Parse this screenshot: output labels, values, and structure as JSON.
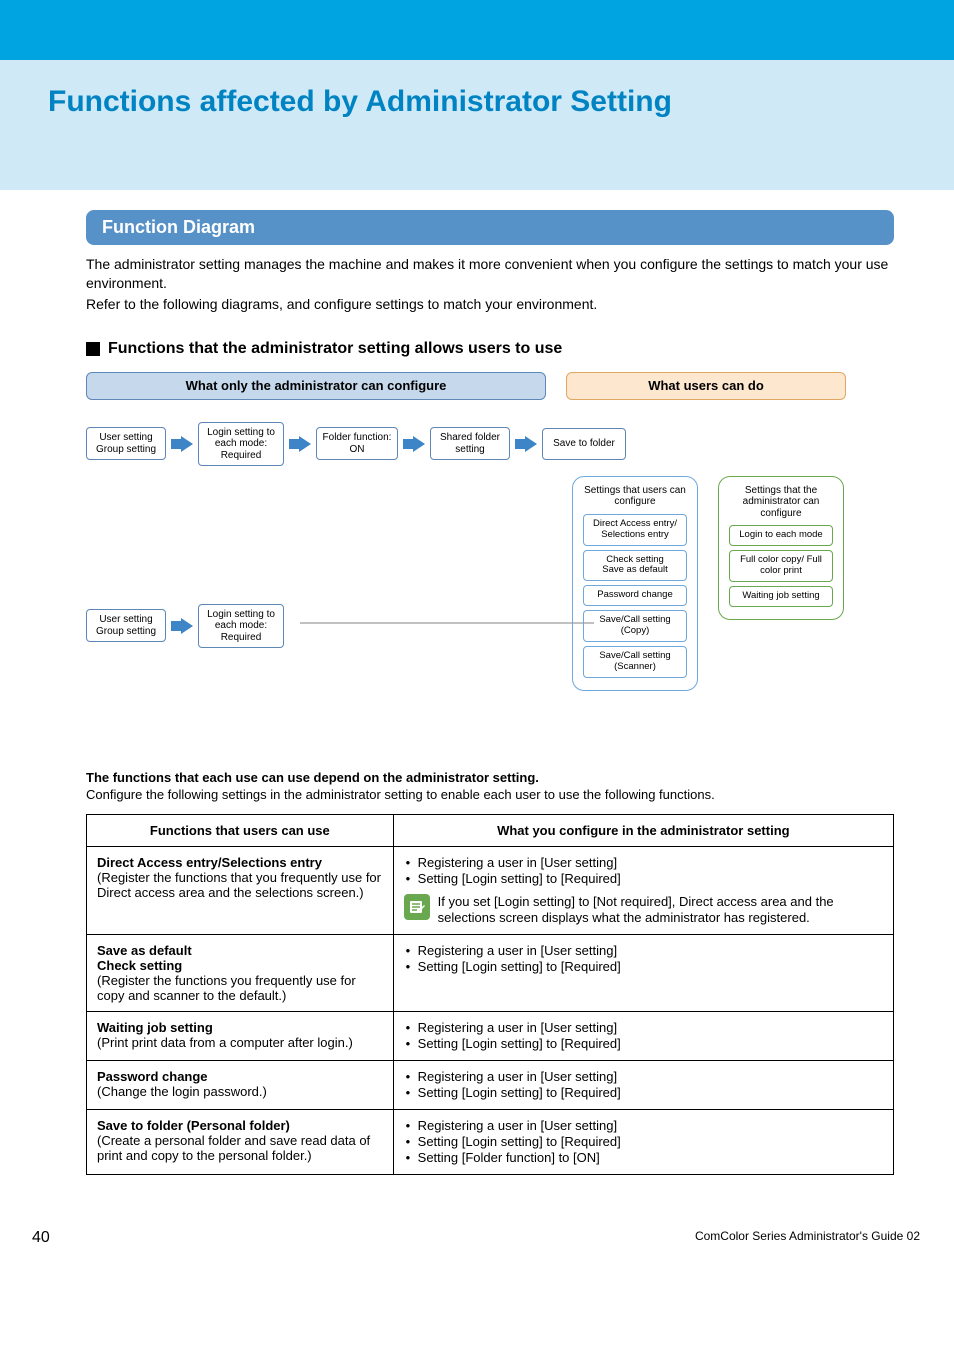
{
  "colors": {
    "top_bar": "#00a4e0",
    "title_band_bg": "#cfe9f7",
    "title_text": "#0083c2",
    "section_header_bg": "#5691c8",
    "admin_panel_fill": "#c6d9ec",
    "admin_panel_border": "#5d87b7",
    "users_panel_fill": "#fde7cf",
    "users_panel_border": "#e0a763",
    "box_border_blue": "#5d87b7",
    "blue_group_border": "#6fa8dc",
    "green_group_border": "#6aa84f",
    "mini_blue_border": "#6fa8dc",
    "mini_green_border": "#6aa84f",
    "arrow_fill": "#3d85c6",
    "note_icon_bg": "#6aa84f",
    "connector": "#808080"
  },
  "title": "Functions affected by Administrator Setting",
  "section_header": "Function Diagram",
  "intro": {
    "p1": "The administrator setting manages the machine and makes it more convenient when you configure the settings to match your use environment.",
    "p2": "Refer to the following diagrams, and configure settings to match your environment."
  },
  "subheading": "Functions that the administrator setting allows users to use",
  "diagram": {
    "admin_panel": "What only the administrator can configure",
    "users_panel": "What users can do",
    "row1": {
      "b1": "User setting\nGroup setting",
      "b2": "Login setting to each mode: Required",
      "b3": "Folder function: ON",
      "b4": "Shared folder setting",
      "b5": "Save to folder"
    },
    "row2": {
      "b1": "User setting\nGroup setting",
      "b2": "Login setting to each mode: Required"
    },
    "users_group": {
      "title": "Settings that users can configure",
      "items": [
        "Direct Access entry/ Selections entry",
        "Check setting\nSave as default",
        "Password change",
        "Save/Call setting (Copy)",
        "Save/Call setting (Scanner)"
      ]
    },
    "admins_group": {
      "title": "Settings that the administrator can configure",
      "items": [
        "Login to each mode",
        "Full color copy/ Full color print",
        "Waiting job setting"
      ]
    }
  },
  "explain": {
    "bold": "The functions that each use can use depend on the administrator setting.",
    "p": "Configure the following settings in the administrator setting to enable each user to use the following functions."
  },
  "table": {
    "headers": [
      "Functions that users can use",
      "What you configure in the administrator setting"
    ],
    "rows": [
      {
        "left_title": "Direct Access entry/Selections entry",
        "left_sub": "(Register the functions that you frequently use for Direct access area and the selections screen.)",
        "right_bullets": [
          "Registering a user in [User setting]",
          "Setting [Login setting] to [Required]"
        ],
        "note": "If you set [Login setting] to [Not required], Direct access area and the selections screen displays what the administrator has registered."
      },
      {
        "left_title": "Save as default",
        "left_title2": "Check setting",
        "left_sub": "(Register the functions you frequently use for copy and scanner to the default.)",
        "right_bullets": [
          "Registering a user in [User setting]",
          "Setting [Login setting] to [Required]"
        ]
      },
      {
        "left_title": "Waiting job setting",
        "left_sub": "(Print print data from a computer after login.)",
        "right_bullets": [
          "Registering a user in [User setting]",
          "Setting [Login setting] to [Required]"
        ]
      },
      {
        "left_title": "Password change",
        "left_sub": "(Change the login password.)",
        "right_bullets": [
          "Registering a user in [User setting]",
          "Setting [Login setting] to [Required]"
        ]
      },
      {
        "left_title": "Save to folder (Personal folder)",
        "left_sub": "(Create a personal folder and save read data of print and copy to the personal folder.)",
        "right_bullets": [
          "Registering a user in [User setting]",
          "Setting [Login setting] to [Required]",
          "Setting [Folder function] to [ON]"
        ]
      }
    ]
  },
  "page_number": "40",
  "footer": "ComColor Series  Administrator's Guide  02"
}
